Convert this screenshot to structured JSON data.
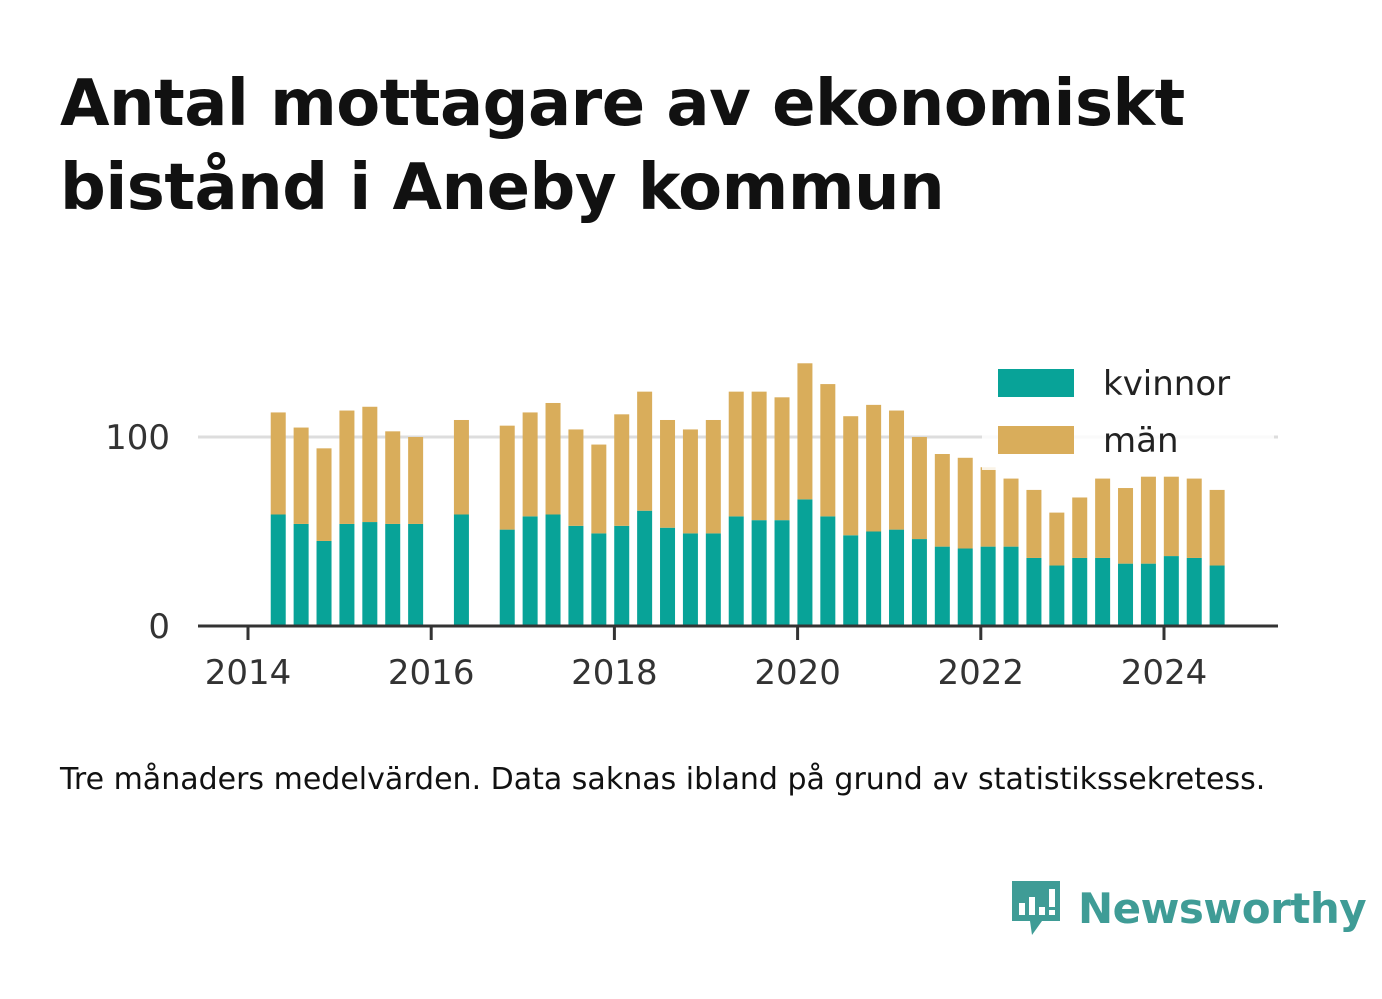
{
  "title": "Antal mottagare av ekonomiskt bistånd i Aneby kommun",
  "note": "Tre månaders medelvärden. Data saknas ibland på grund av statistikssekretess.",
  "brand": {
    "name": "Newsworthy",
    "icon": "newsworthy-logo-icon"
  },
  "colors": {
    "kvinnor": "#08a398",
    "man": "#d9ad5b",
    "grid": "#dddddd",
    "axis": "#333333"
  },
  "chart_data": {
    "type": "bar",
    "stacked": true,
    "x_unit": "year",
    "x_ticks": [
      "2014",
      "2016",
      "2018",
      "2020",
      "2022",
      "2024"
    ],
    "y_ticks": [
      "0",
      "100"
    ],
    "ylim": [
      0,
      140
    ],
    "grid": "horizontal",
    "legend_position": "top-right",
    "series": [
      {
        "name": "kvinnor",
        "color": "#08a398",
        "points": [
          {
            "x": 2014.33,
            "y": 59
          },
          {
            "x": 2014.58,
            "y": 54
          },
          {
            "x": 2014.83,
            "y": 45
          },
          {
            "x": 2015.08,
            "y": 54
          },
          {
            "x": 2015.33,
            "y": 55
          },
          {
            "x": 2015.58,
            "y": 54
          },
          {
            "x": 2015.83,
            "y": 54
          },
          {
            "x": 2016.33,
            "y": 59
          },
          {
            "x": 2016.83,
            "y": 51
          },
          {
            "x": 2017.08,
            "y": 58
          },
          {
            "x": 2017.33,
            "y": 59
          },
          {
            "x": 2017.58,
            "y": 53
          },
          {
            "x": 2017.83,
            "y": 49
          },
          {
            "x": 2018.08,
            "y": 53
          },
          {
            "x": 2018.33,
            "y": 61
          },
          {
            "x": 2018.58,
            "y": 52
          },
          {
            "x": 2018.83,
            "y": 49
          },
          {
            "x": 2019.08,
            "y": 49
          },
          {
            "x": 2019.33,
            "y": 58
          },
          {
            "x": 2019.58,
            "y": 56
          },
          {
            "x": 2019.83,
            "y": 56
          },
          {
            "x": 2020.08,
            "y": 67
          },
          {
            "x": 2020.33,
            "y": 58
          },
          {
            "x": 2020.58,
            "y": 48
          },
          {
            "x": 2020.83,
            "y": 50
          },
          {
            "x": 2021.08,
            "y": 51
          },
          {
            "x": 2021.33,
            "y": 46
          },
          {
            "x": 2021.58,
            "y": 42
          },
          {
            "x": 2021.83,
            "y": 41
          },
          {
            "x": 2022.08,
            "y": 42
          },
          {
            "x": 2022.33,
            "y": 42
          },
          {
            "x": 2022.58,
            "y": 36
          },
          {
            "x": 2022.83,
            "y": 32
          },
          {
            "x": 2023.08,
            "y": 36
          },
          {
            "x": 2023.33,
            "y": 36
          },
          {
            "x": 2023.58,
            "y": 33
          },
          {
            "x": 2023.83,
            "y": 33
          },
          {
            "x": 2024.08,
            "y": 37
          },
          {
            "x": 2024.33,
            "y": 36
          },
          {
            "x": 2024.58,
            "y": 32
          }
        ]
      },
      {
        "name": "män",
        "color": "#d9ad5b",
        "points": [
          {
            "x": 2014.33,
            "y": 54
          },
          {
            "x": 2014.58,
            "y": 51
          },
          {
            "x": 2014.83,
            "y": 49
          },
          {
            "x": 2015.08,
            "y": 60
          },
          {
            "x": 2015.33,
            "y": 61
          },
          {
            "x": 2015.58,
            "y": 49
          },
          {
            "x": 2015.83,
            "y": 46
          },
          {
            "x": 2016.33,
            "y": 50
          },
          {
            "x": 2016.83,
            "y": 55
          },
          {
            "x": 2017.08,
            "y": 55
          },
          {
            "x": 2017.33,
            "y": 59
          },
          {
            "x": 2017.58,
            "y": 51
          },
          {
            "x": 2017.83,
            "y": 47
          },
          {
            "x": 2018.08,
            "y": 59
          },
          {
            "x": 2018.33,
            "y": 63
          },
          {
            "x": 2018.58,
            "y": 57
          },
          {
            "x": 2018.83,
            "y": 55
          },
          {
            "x": 2019.08,
            "y": 60
          },
          {
            "x": 2019.33,
            "y": 66
          },
          {
            "x": 2019.58,
            "y": 68
          },
          {
            "x": 2019.83,
            "y": 65
          },
          {
            "x": 2020.08,
            "y": 72
          },
          {
            "x": 2020.33,
            "y": 70
          },
          {
            "x": 2020.58,
            "y": 63
          },
          {
            "x": 2020.83,
            "y": 67
          },
          {
            "x": 2021.08,
            "y": 63
          },
          {
            "x": 2021.33,
            "y": 54
          },
          {
            "x": 2021.58,
            "y": 49
          },
          {
            "x": 2021.83,
            "y": 48
          },
          {
            "x": 2022.08,
            "y": 42
          },
          {
            "x": 2022.33,
            "y": 36
          },
          {
            "x": 2022.58,
            "y": 36
          },
          {
            "x": 2022.83,
            "y": 28
          },
          {
            "x": 2023.08,
            "y": 32
          },
          {
            "x": 2023.33,
            "y": 42
          },
          {
            "x": 2023.58,
            "y": 40
          },
          {
            "x": 2023.83,
            "y": 46
          },
          {
            "x": 2024.08,
            "y": 42
          },
          {
            "x": 2024.33,
            "y": 42
          },
          {
            "x": 2024.58,
            "y": 40
          }
        ]
      }
    ]
  }
}
